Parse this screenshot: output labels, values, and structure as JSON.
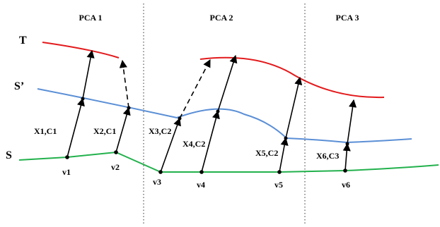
{
  "regions": [
    {
      "label": "PCA 1"
    },
    {
      "label": "PCA 2"
    },
    {
      "label": "PCA 3"
    }
  ],
  "curves": {
    "target": {
      "label": "T",
      "color": "#e31a1c"
    },
    "intermediate": {
      "label": "S’",
      "color": "#5b8fd6"
    },
    "source": {
      "label": "S",
      "color": "#22b14c"
    }
  },
  "vertices": [
    {
      "label": "v1"
    },
    {
      "label": "v2"
    },
    {
      "label": "v3"
    },
    {
      "label": "v4"
    },
    {
      "label": "v5"
    },
    {
      "label": "v6"
    }
  ],
  "vectors": [
    {
      "label": "X1,C1"
    },
    {
      "label": "X2,C1"
    },
    {
      "label": "X3,C2"
    },
    {
      "label": "X4,C2"
    },
    {
      "label": "X5,C2"
    },
    {
      "label": "X6,C3"
    }
  ],
  "colors": {
    "arrow": "#000000",
    "divider": "#555555"
  }
}
